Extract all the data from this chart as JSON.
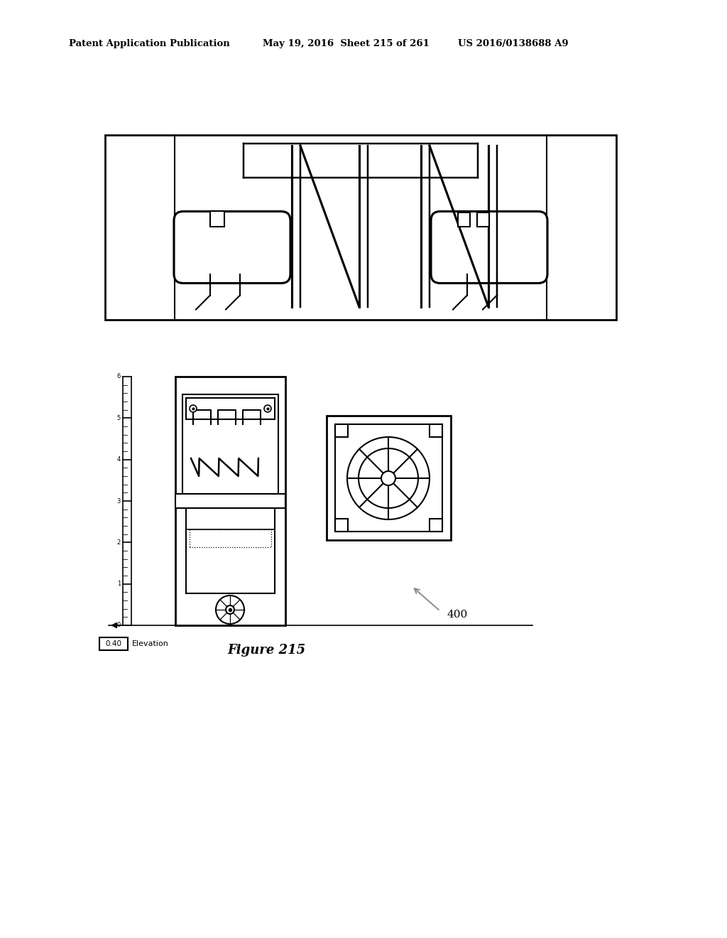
{
  "header_left": "Patent Application Publication",
  "header_middle": "May 19, 2016  Sheet 215 of 261",
  "header_right": "US 2016/0138688 A9",
  "figure_caption": "Figure 215",
  "label_400": "400",
  "elevation_label": "Elevation",
  "elevation_box": "0.40",
  "background_color": "#ffffff",
  "line_color": "#000000",
  "line_width": 1.5
}
